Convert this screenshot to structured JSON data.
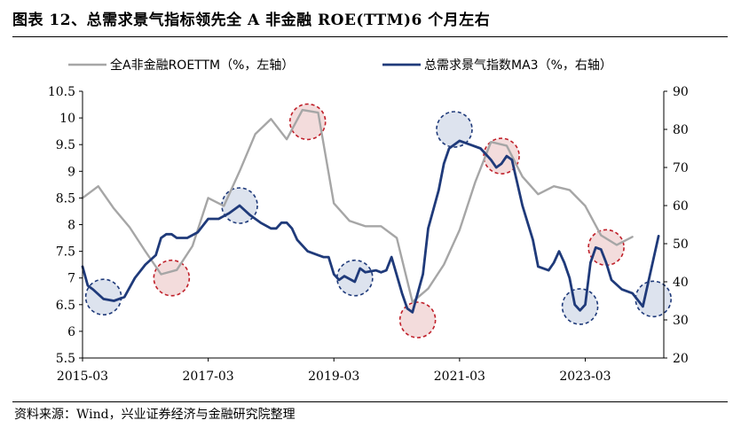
{
  "header": {
    "title": "图表 12、总需求景气指标领先全 A 非金融 ROE(TTM)6 个月左右"
  },
  "footer": {
    "source": "资料来源：Wind，兴业证券经济与金融研究院整理"
  },
  "colors": {
    "roe": "#a6a6a6",
    "ma3": "#1f3a7a",
    "circle_red": "#c0202a",
    "circle_red_fill": "#f3dcdc",
    "circle_blue": "#1f3a7a",
    "circle_blue_fill": "#dde3ee"
  },
  "chart_data": {
    "type": "line",
    "x_ticks": [
      "2015-03",
      "2017-03",
      "2019-03",
      "2021-03",
      "2023-03"
    ],
    "x_range": [
      "2015-03",
      "2024-06"
    ],
    "y_left": {
      "ylim": [
        5.5,
        10.5
      ],
      "ticks": [
        "5.5",
        "6",
        "6.5",
        "7",
        "7.5",
        "8",
        "8.5",
        "9",
        "9.5",
        "10",
        "10.5"
      ]
    },
    "y_right": {
      "ylim": [
        20,
        90
      ],
      "ticks": [
        "20",
        "30",
        "40",
        "50",
        "60",
        "70",
        "80",
        "90"
      ]
    },
    "grid": false,
    "legend_position": "top",
    "series": [
      {
        "name": "全A非金融ROETTM（%，左轴）",
        "axis": "left",
        "points": [
          [
            "2015-03",
            8.5
          ],
          [
            "2015-06",
            8.72
          ],
          [
            "2015-09",
            8.3
          ],
          [
            "2015-12",
            7.95
          ],
          [
            "2016-03",
            7.5
          ],
          [
            "2016-06",
            7.07
          ],
          [
            "2016-09",
            7.15
          ],
          [
            "2016-12",
            7.6
          ],
          [
            "2017-03",
            8.5
          ],
          [
            "2017-06",
            8.35
          ],
          [
            "2017-09",
            9.0
          ],
          [
            "2017-12",
            9.7
          ],
          [
            "2018-03",
            9.98
          ],
          [
            "2018-06",
            9.6
          ],
          [
            "2018-09",
            10.15
          ],
          [
            "2018-12",
            10.1
          ],
          [
            "2019-03",
            8.4
          ],
          [
            "2019-06",
            8.07
          ],
          [
            "2019-09",
            7.97
          ],
          [
            "2019-12",
            7.97
          ],
          [
            "2020-03",
            7.75
          ],
          [
            "2020-06",
            6.55
          ],
          [
            "2020-09",
            6.8
          ],
          [
            "2020-12",
            7.25
          ],
          [
            "2021-03",
            7.9
          ],
          [
            "2021-06",
            8.8
          ],
          [
            "2021-09",
            9.55
          ],
          [
            "2021-12",
            9.48
          ],
          [
            "2022-03",
            8.9
          ],
          [
            "2022-06",
            8.57
          ],
          [
            "2022-09",
            8.72
          ],
          [
            "2022-12",
            8.65
          ],
          [
            "2023-03",
            8.35
          ],
          [
            "2023-06",
            7.8
          ],
          [
            "2023-09",
            7.62
          ],
          [
            "2023-12",
            7.77
          ]
        ]
      },
      {
        "name": "总需求景气指数MA3（%，右轴）",
        "axis": "right",
        "points": [
          [
            "2015-03",
            44
          ],
          [
            "2015-04",
            39
          ],
          [
            "2015-05",
            38
          ],
          [
            "2015-07",
            35.5
          ],
          [
            "2015-09",
            35
          ],
          [
            "2015-11",
            36
          ],
          [
            "2016-01",
            41
          ],
          [
            "2016-03",
            44.5
          ],
          [
            "2016-05",
            47
          ],
          [
            "2016-06",
            51.5
          ],
          [
            "2016-07",
            52.5
          ],
          [
            "2016-08",
            52.5
          ],
          [
            "2016-09",
            51.5
          ],
          [
            "2016-11",
            51.5
          ],
          [
            "2017-01",
            53
          ],
          [
            "2017-03",
            56.5
          ],
          [
            "2017-05",
            56.5
          ],
          [
            "2017-07",
            58
          ],
          [
            "2017-09",
            60
          ],
          [
            "2017-11",
            57.5
          ],
          [
            "2018-01",
            55.5
          ],
          [
            "2018-03",
            54
          ],
          [
            "2018-04",
            54
          ],
          [
            "2018-05",
            55.5
          ],
          [
            "2018-06",
            55.5
          ],
          [
            "2018-07",
            54
          ],
          [
            "2018-08",
            51
          ],
          [
            "2018-10",
            48
          ],
          [
            "2018-12",
            47
          ],
          [
            "2019-01",
            46.5
          ],
          [
            "2019-02",
            46.5
          ],
          [
            "2019-03",
            42
          ],
          [
            "2019-04",
            40.5
          ],
          [
            "2019-05",
            41.5
          ],
          [
            "2019-07",
            40
          ],
          [
            "2019-08",
            43.5
          ],
          [
            "2019-09",
            42.5
          ],
          [
            "2019-11",
            43
          ],
          [
            "2019-12",
            42.5
          ],
          [
            "2020-01",
            43
          ],
          [
            "2020-02",
            46.5
          ],
          [
            "2020-04",
            37
          ],
          [
            "2020-05",
            33
          ],
          [
            "2020-06",
            32
          ],
          [
            "2020-08",
            42
          ],
          [
            "2020-09",
            54
          ],
          [
            "2020-11",
            64
          ],
          [
            "2020-12",
            71
          ],
          [
            "2021-01",
            75
          ],
          [
            "2021-03",
            77
          ],
          [
            "2021-05",
            76
          ],
          [
            "2021-07",
            75
          ],
          [
            "2021-09",
            72
          ],
          [
            "2021-10",
            70
          ],
          [
            "2021-11",
            71
          ],
          [
            "2021-12",
            73
          ],
          [
            "2022-01",
            72
          ],
          [
            "2022-02",
            66
          ],
          [
            "2022-03",
            60
          ],
          [
            "2022-05",
            51
          ],
          [
            "2022-06",
            44
          ],
          [
            "2022-08",
            43
          ],
          [
            "2022-09",
            45
          ],
          [
            "2022-10",
            48
          ],
          [
            "2022-11",
            45
          ],
          [
            "2022-12",
            41
          ],
          [
            "2023-01",
            34
          ],
          [
            "2023-02",
            32.5
          ],
          [
            "2023-03",
            34
          ],
          [
            "2023-04",
            45
          ],
          [
            "2023-05",
            49
          ],
          [
            "2023-06",
            48.5
          ],
          [
            "2023-07",
            45
          ],
          [
            "2023-08",
            40.5
          ],
          [
            "2023-10",
            38
          ],
          [
            "2023-12",
            37
          ],
          [
            "2024-02",
            33.5
          ],
          [
            "2024-05",
            52
          ]
        ]
      }
    ],
    "highlights": [
      {
        "kind": "blue",
        "at": [
          "2015-07",
          36
        ]
      },
      {
        "kind": "blue",
        "at": [
          "2017-09",
          60
        ]
      },
      {
        "kind": "blue",
        "at": [
          "2019-07",
          41
        ]
      },
      {
        "kind": "blue",
        "at": [
          "2021-02",
          80
        ]
      },
      {
        "kind": "blue",
        "at": [
          "2023-02",
          33.5
        ]
      },
      {
        "kind": "blue",
        "at": [
          "2024-04",
          35.5
        ]
      },
      {
        "kind": "red",
        "at": [
          "2016-08",
          41
        ]
      },
      {
        "kind": "red",
        "at": [
          "2018-10",
          82
        ]
      },
      {
        "kind": "red",
        "at": [
          "2020-07",
          30
        ]
      },
      {
        "kind": "red",
        "at": [
          "2021-11",
          73
        ]
      },
      {
        "kind": "red",
        "at": [
          "2023-07",
          49
        ]
      }
    ]
  }
}
